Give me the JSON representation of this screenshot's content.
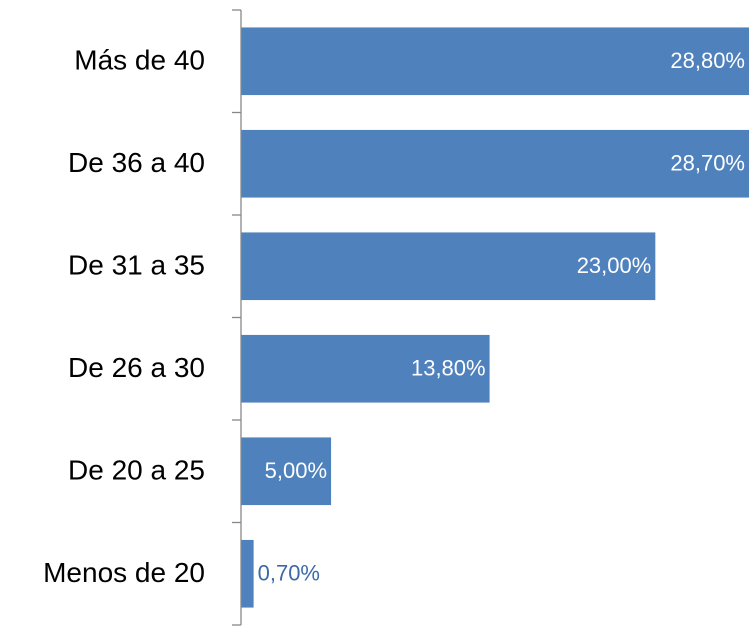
{
  "chart_data": {
    "type": "barh",
    "categories": [
      "Más de 40",
      "De 36 a 40",
      "De 31 a 35",
      "De 26 a 30",
      "De 20 a 25",
      "Menos de 20"
    ],
    "values": [
      28.8,
      28.7,
      23.0,
      13.8,
      5.0,
      0.7
    ],
    "value_labels": [
      "28,80%",
      "28,70%",
      "23,00%",
      "13,80%",
      "5,00%",
      "0,70%"
    ],
    "color": "#4f81bd",
    "xlim": [
      0,
      28.2
    ]
  }
}
